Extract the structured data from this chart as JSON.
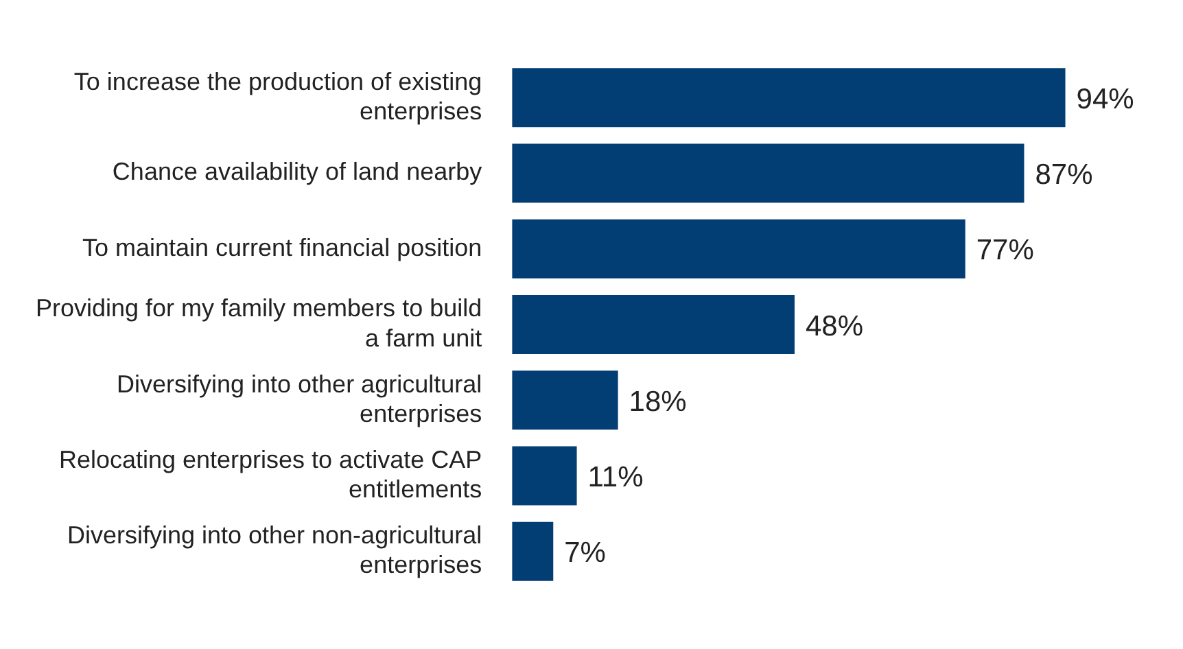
{
  "chart_data": {
    "type": "bar",
    "orientation": "horizontal",
    "categories": [
      "To increase the production of existing enterprises",
      "Chance availability of land nearby",
      "To maintain current financial position",
      "Providing for my family members to build a farm unit",
      "Diversifying into other agricultural enterprises",
      "Relocating enterprises to activate CAP entitlements",
      "Diversifying into other non-agricultural enterprises"
    ],
    "values": [
      94,
      87,
      77,
      48,
      18,
      11,
      7
    ],
    "value_labels": [
      "94%",
      "87%",
      "77%",
      "48%",
      "18%",
      "11%",
      "7%"
    ],
    "color": "#023e74",
    "grid": false,
    "legend": false,
    "tick_labels": "y"
  }
}
